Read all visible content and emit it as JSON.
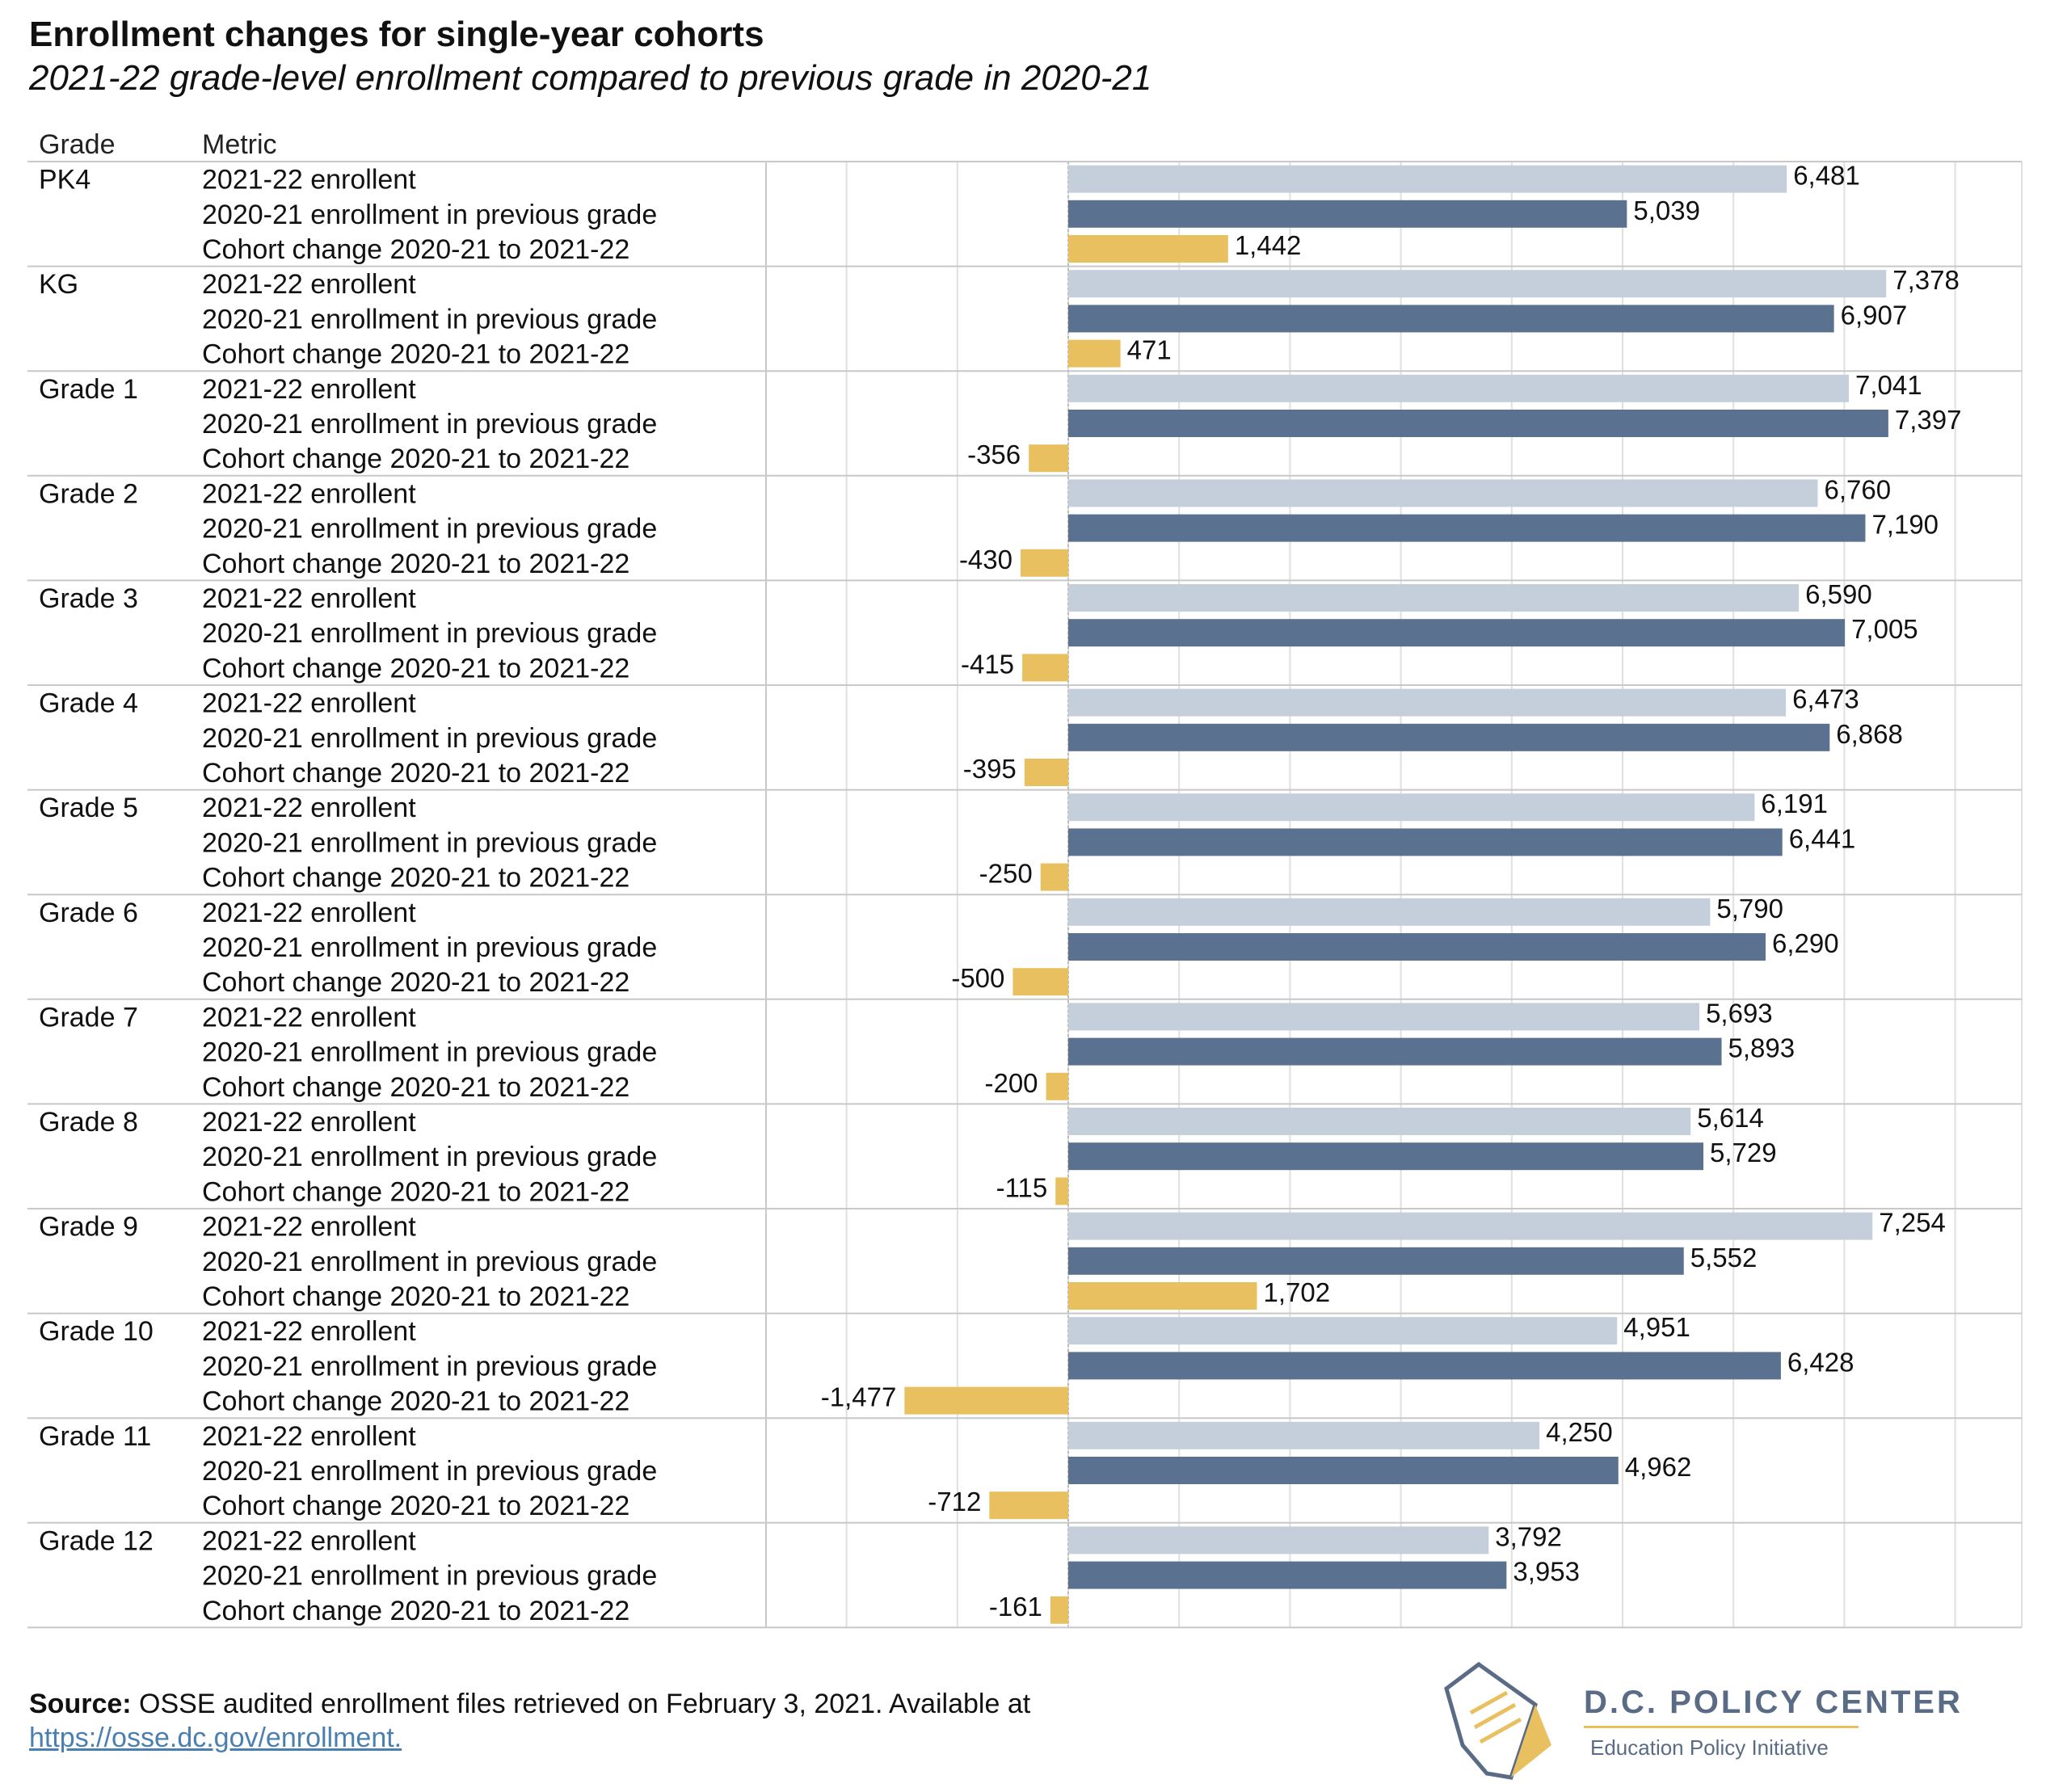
{
  "title": "Enrollment changes for single-year cohorts",
  "subtitle": "2021-22 grade-level enrollment compared to previous grade in 2020-21",
  "headers": {
    "grade": "Grade",
    "metric": "Metric"
  },
  "colors": {
    "enrollment_2122": "#c5cedb",
    "enrollment_prev": "#5b7190",
    "cohort_change": "#e8c060",
    "grid": "#e0e0e0",
    "divider": "#c8c8c8"
  },
  "chart_data": {
    "type": "bar",
    "orientation": "horizontal",
    "grid": true,
    "metrics": [
      "2021-22 enrollent",
      "2020-21 enrollment in previous grade",
      "Cohort change 2020-21 to 2021-22"
    ],
    "grades": [
      "PK4",
      "KG",
      "Grade 1",
      "Grade 2",
      "Grade 3",
      "Grade 4",
      "Grade 5",
      "Grade 6",
      "Grade 7",
      "Grade 8",
      "Grade 9",
      "Grade 10",
      "Grade 11",
      "Grade 12"
    ],
    "series": [
      {
        "values": [
          6481,
          7378,
          7041,
          6760,
          6590,
          6473,
          6191,
          5790,
          5693,
          5614,
          7254,
          4951,
          4250,
          3792
        ],
        "labels": [
          "6,481",
          "7,378",
          "7,041",
          "6,760",
          "6,590",
          "6,473",
          "6,191",
          "5,790",
          "5,693",
          "5,614",
          "7,254",
          "4,951",
          "4,250",
          "3,792"
        ]
      },
      {
        "values": [
          5039,
          6907,
          7397,
          7190,
          7005,
          6868,
          6441,
          6290,
          5893,
          5729,
          5552,
          6428,
          4962,
          3953
        ],
        "labels": [
          "5,039",
          "6,907",
          "7,397",
          "7,190",
          "7,005",
          "6,868",
          "6,441",
          "6,290",
          "5,893",
          "5,729",
          "5,552",
          "6,428",
          "4,962",
          "3,953"
        ]
      },
      {
        "values": [
          1442,
          471,
          -356,
          -430,
          -415,
          -395,
          -250,
          -500,
          -200,
          -115,
          1702,
          -1477,
          -712,
          -161
        ],
        "labels": [
          "1,442",
          "471",
          "-356",
          "-430",
          "-415",
          "-395",
          "-250",
          "-500",
          "-200",
          "-115",
          "1,702",
          "-1,477",
          "-712",
          "-161"
        ]
      }
    ]
  },
  "footer": {
    "source_label": "Source:",
    "source_text": "OSSE audited enrollment files retrieved on February 3, 2021. Available at",
    "link": "https://osse.dc.gov/enrollment."
  },
  "logo": {
    "name": "D.C. POLICY CENTER",
    "tagline": "Education Policy Initiative"
  }
}
